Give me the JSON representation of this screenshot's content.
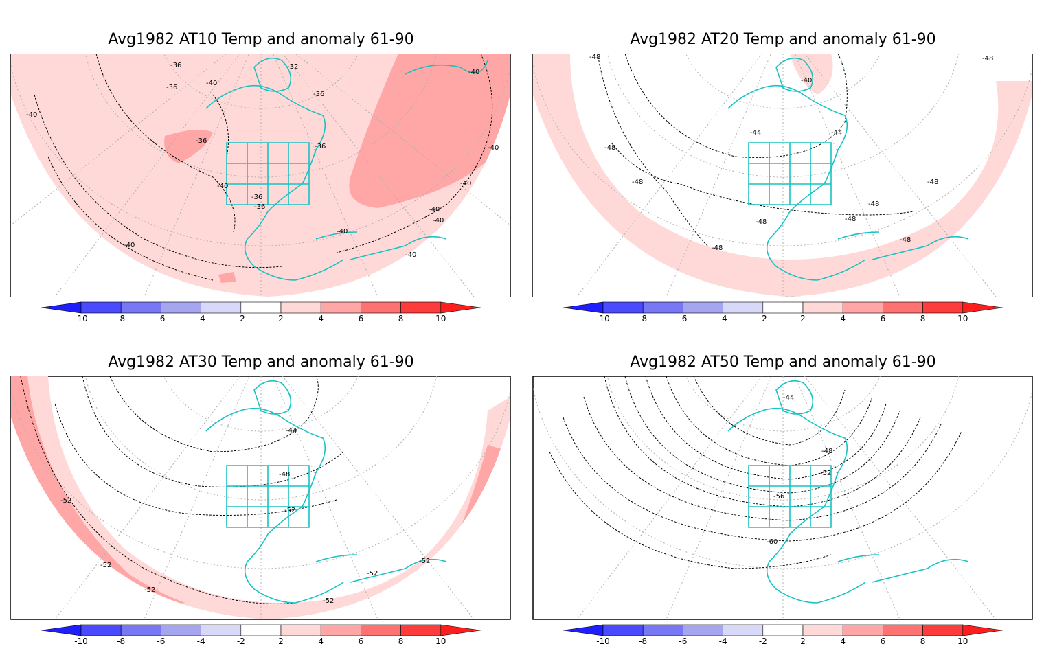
{
  "panels": [
    {
      "title": "Avg1982 AT10 Temp and anomaly 61-90",
      "contour_labels": [
        "-36",
        "-36",
        "-32",
        "-36",
        "-36",
        "-40",
        "-36",
        "-36",
        "-40",
        "-40",
        "-40",
        "-40",
        "-40",
        "-36",
        "-40",
        "-40",
        "-40",
        "-40",
        "-40"
      ]
    },
    {
      "title": "Avg1982 AT20 Temp and anomaly 61-90",
      "contour_labels": [
        "-48",
        "-40",
        "-48",
        "-44",
        "-44",
        "-48",
        "-48",
        "-48",
        "-48",
        "-48",
        "-48",
        "-48",
        "-48"
      ]
    },
    {
      "title": "Avg1982 AT30 Temp and anomaly 61-90",
      "contour_labels": [
        "-44",
        "-48",
        "-52",
        "-52",
        "-52",
        "-52",
        "-52",
        "-52",
        "-52"
      ]
    },
    {
      "title": "Avg1982 AT50 Temp and anomaly 61-90",
      "contour_labels": [
        "-44",
        "-48",
        "-52",
        "-56",
        "-60"
      ]
    }
  ],
  "colorbar": {
    "ticks": [
      "-10",
      "-8",
      "-6",
      "-4",
      "-2",
      "2",
      "4",
      "6",
      "8",
      "10"
    ],
    "colors": [
      "#1e1eff",
      "#4a4aff",
      "#7878f5",
      "#a6a6f0",
      "#d8d8f8",
      "#ffffff",
      "#ffd8d8",
      "#ffa6a6",
      "#ff7272",
      "#ff3c3c",
      "#ff1e1e"
    ]
  },
  "colors": {
    "coast": "#19c2c2",
    "anomaly_2_4": "#ffd8d8",
    "anomaly_4_6": "#ffa6a6",
    "contour": "#000000",
    "grid": "#b0b0b0"
  }
}
